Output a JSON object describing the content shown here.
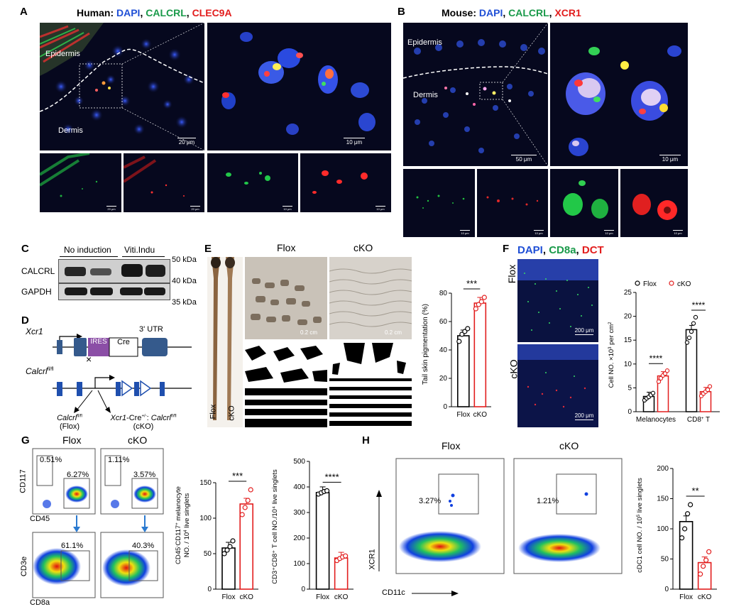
{
  "panelA": {
    "label": "A",
    "title_prefix": "Human: ",
    "ch1": "DAPI",
    "sep1": ", ",
    "ch2": "CALCRL",
    "sep2": ", ",
    "ch3": "CLEC9A",
    "epidermis": "Epidermis",
    "dermis": "Dermis",
    "scale_main": "20 μm",
    "scale_zoom": "10 μm",
    "scale_s1": "20 μm",
    "scale_s2": "20 μm",
    "scale_s3": "10 μm",
    "scale_s4": "10 μm"
  },
  "panelB": {
    "label": "B",
    "title_prefix": "Mouse: ",
    "ch1": "DAPI",
    "sep1": ", ",
    "ch2": "CALCRL",
    "sep2": ", ",
    "ch3": "XCR1",
    "epidermis": "Epidermis",
    "dermis": "Dermis",
    "scale_main": "50 μm",
    "scale_zoom": "10 μm",
    "scale_s1": "10 μm",
    "scale_s2": "10 μm",
    "scale_s3": "10 μm",
    "scale_s4": "10 μm"
  },
  "panelC": {
    "label": "C",
    "group1": "No induction",
    "group2": "Viti.Indu",
    "row1": "CALCRL",
    "row2": "GAPDH",
    "mw1": "50 kDa",
    "mw2": "40 kDa",
    "mw3": "35 kDa"
  },
  "panelD": {
    "label": "D",
    "gene1": "Xcr1",
    "ires": "IRES",
    "cre": "Cre",
    "utr": "3' UTR",
    "gene2": "Calcrl",
    "gene2_sup": "fl/fl",
    "cross": "×",
    "flox_line1a": "Calcrl",
    "flox_line1b": "fl/fl",
    "flox_line2": "(Flox)",
    "cko_line1a": "Xcr1",
    "cko_line1b": "-Cre",
    "cko_line1c": "+/-",
    "cko_line1d": ": ",
    "cko_line1e": "Calcrl",
    "cko_line1f": "fl/fl",
    "cko_line2": "(cKO)"
  },
  "panelE": {
    "label": "E",
    "col1": "Flox",
    "col2": "cKO",
    "tail1": "Flox",
    "tail2": "cKO",
    "scale1": "0.2 cm",
    "scale2": "0.2 cm",
    "chart": {
      "ylabel": "Tail skin pigmentation (%)",
      "sig": "***",
      "categories": [
        "Flox",
        "cKO"
      ],
      "yticks": [
        "0",
        "20",
        "40",
        "60",
        "80"
      ]
    }
  },
  "panelF": {
    "label": "F",
    "ch1": "DAPI",
    "sep1": ", ",
    "ch2": "CD8a",
    "sep2": ", ",
    "ch3": "DCT",
    "row1": "Flox",
    "row2": "cKO",
    "scale1": "200 μm",
    "scale2": "200 μm",
    "chart": {
      "ylabel_a": "Cell NO. ×10",
      "ylabel_sup": "3",
      "ylabel_b": " per cm",
      "ylabel_sup2": "2",
      "legend1": "Flox",
      "legend2": "cKO",
      "sig1": "****",
      "sig2": "****",
      "cat1": "Melanocytes",
      "cat2a": "CD8",
      "cat2sup": "+",
      "cat2b": " T",
      "yticks": [
        "0",
        "5",
        "10",
        "15",
        "20",
        "25"
      ]
    }
  },
  "panelG": {
    "label": "G",
    "col1": "Flox",
    "col2": "cKO",
    "ylab_top": "CD117",
    "xlab_top": "CD45",
    "ylab_bot": "CD3e",
    "xlab_bot": "CD8a",
    "pct_flox_a": "0.51%",
    "pct_flox_b": "6.27%",
    "pct_cko_a": "1.11%",
    "pct_cko_b": "3.57%",
    "pct_flox_c": "61.1%",
    "pct_cko_c": "40.3%",
    "chart1": {
      "ylabel_l1": "CD45",
      "ylabel_l1b": "CD117",
      "ylabel_l1c": " melanocyte",
      "ylabel_l2": "NO. / 10",
      "ylabel_l2sup": "4",
      "ylabel_l2b": " live singlets",
      "sig": "***",
      "categories": [
        "Flox",
        "cKO"
      ],
      "yticks": [
        "0",
        "50",
        "100",
        "150"
      ]
    },
    "chart2": {
      "ylabel": "CD3⁺CD8⁺ T cell NO./10⁴ live singlets",
      "sig": "****",
      "categories": [
        "Flox",
        "cKO"
      ],
      "yticks": [
        "0",
        "100",
        "200",
        "300",
        "400",
        "500"
      ]
    }
  },
  "panelH": {
    "label": "H",
    "col1": "Flox",
    "col2": "cKO",
    "pct1": "3.27%",
    "pct2": "1.21%",
    "ylab": "XCR1",
    "xlab": "CD11c",
    "chart": {
      "ylabel_a": "cDC1 cell  NO. / 10",
      "ylabel_sup": "5",
      "ylabel_b": " live singlets",
      "sig": "**",
      "categories": [
        "Flox",
        "cKO"
      ],
      "yticks": [
        "0",
        "50",
        "100",
        "150",
        "200"
      ]
    }
  },
  "chart_data": [
    {
      "type": "bar",
      "panel": "E",
      "ylabel": "Tail skin pigmentation (%)",
      "categories": [
        "Flox",
        "cKO"
      ],
      "values": [
        50,
        73
      ],
      "points": [
        [
          46,
          51,
          53,
          55
        ],
        [
          69,
          72,
          74,
          77
        ]
      ],
      "ylim": [
        0,
        80
      ],
      "colors": [
        "#000000",
        "#e21d1d"
      ],
      "annotation": "***"
    },
    {
      "type": "bar",
      "panel": "F",
      "ylabel": "Cell NO. ×10³ per cm²",
      "categories": [
        "Melanocytes",
        "CD8⁺ T"
      ],
      "series": [
        {
          "name": "Flox",
          "values": [
            3.2,
            17.2
          ],
          "points": [
            [
              2.4,
              2.8,
              3.1,
              3.5,
              3.9
            ],
            [
              14.5,
              15.5,
              16.8,
              18.5,
              19.8
            ]
          ]
        },
        {
          "name": "cKO",
          "values": [
            7.5,
            4.2
          ],
          "points": [
            [
              6.3,
              7.0,
              7.6,
              8.0,
              8.6
            ],
            [
              3.3,
              3.8,
              4.2,
              4.6,
              5.3
            ]
          ]
        }
      ],
      "ylim": [
        0,
        25
      ],
      "colors": [
        "#000000",
        "#e21d1d"
      ],
      "annotations": [
        "****",
        "****"
      ],
      "legend": "top-right"
    },
    {
      "type": "bar",
      "panel": "G-left",
      "ylabel": "CD45⁻CD117⁺ melanocyte NO. / 10⁴ live singlets",
      "categories": [
        "Flox",
        "cKO"
      ],
      "values": [
        58,
        120
      ],
      "points": [
        [
          50,
          55,
          60,
          68
        ],
        [
          105,
          115,
          125,
          140
        ]
      ],
      "ylim": [
        0,
        150
      ],
      "colors": [
        "#000000",
        "#e21d1d"
      ],
      "annotation": "***"
    },
    {
      "type": "bar",
      "panel": "G-right",
      "ylabel": "CD3⁺CD8⁺ T cell NO./10⁴ live singlets",
      "categories": [
        "Flox",
        "cKO"
      ],
      "values": [
        378,
        122
      ],
      "points": [
        [
          372,
          377,
          382,
          385
        ],
        [
          112,
          120,
          126,
          130
        ]
      ],
      "ylim": [
        0,
        500
      ],
      "colors": [
        "#000000",
        "#e21d1d"
      ],
      "annotation": "****"
    },
    {
      "type": "bar",
      "panel": "H",
      "ylabel": "cDC1 cell NO. / 10⁵ live singlets",
      "categories": [
        "Flox",
        "cKO"
      ],
      "values": [
        112,
        44
      ],
      "points": [
        [
          85,
          100,
          125,
          140
        ],
        [
          25,
          38,
          48,
          62
        ]
      ],
      "ylim": [
        0,
        200
      ],
      "colors": [
        "#000000",
        "#e21d1d"
      ],
      "annotation": "**"
    }
  ]
}
